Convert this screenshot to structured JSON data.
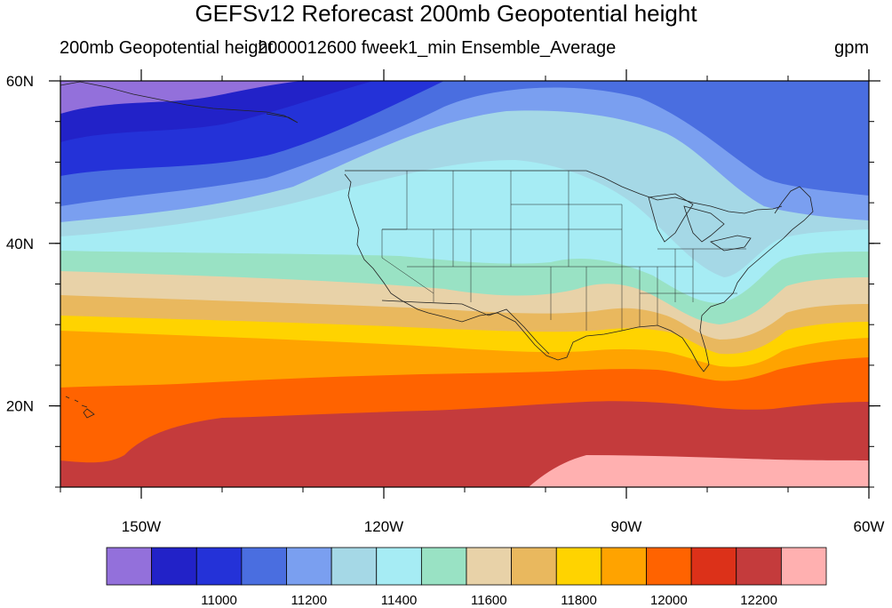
{
  "title": "GEFSv12 Reforecast 200mb Geopotential height",
  "subtitle_left": "200mb Geopotential height",
  "subtitle_center": "2000012600 fweek1_min Ensemble_Average",
  "subtitle_right": "gpm",
  "map": {
    "projection": "cylindrical equidistant",
    "lon_range": [
      -160,
      -60
    ],
    "lat_range": [
      10,
      60
    ],
    "x_ticks": [
      {
        "lon": -150,
        "label": "150W"
      },
      {
        "lon": -120,
        "label": "120W"
      },
      {
        "lon": -90,
        "label": "90W"
      },
      {
        "lon": -60,
        "label": "60W"
      }
    ],
    "y_ticks": [
      {
        "lat": 60,
        "label": "60N"
      },
      {
        "lat": 40,
        "label": "40N"
      },
      {
        "lat": 20,
        "label": "20N"
      }
    ]
  },
  "colorbar": {
    "colors": [
      "#9370db",
      "#2222c8",
      "#2432d8",
      "#4a6ee0",
      "#7a9ff0",
      "#a5d8e6",
      "#a6ecf4",
      "#99e2c4",
      "#e8d2a8",
      "#e9b85e",
      "#ffd300",
      "#ffa300",
      "#ff6300",
      "#dc3119",
      "#c43b3c",
      "#ffb0b0"
    ],
    "labels": [
      {
        "index": 2,
        "value": "11000"
      },
      {
        "index": 4,
        "value": "11200"
      },
      {
        "index": 6,
        "value": "11400"
      },
      {
        "index": 8,
        "value": "11600"
      },
      {
        "index": 10,
        "value": "11800"
      },
      {
        "index": 12,
        "value": "12000"
      },
      {
        "index": 14,
        "value": "12200"
      }
    ]
  }
}
